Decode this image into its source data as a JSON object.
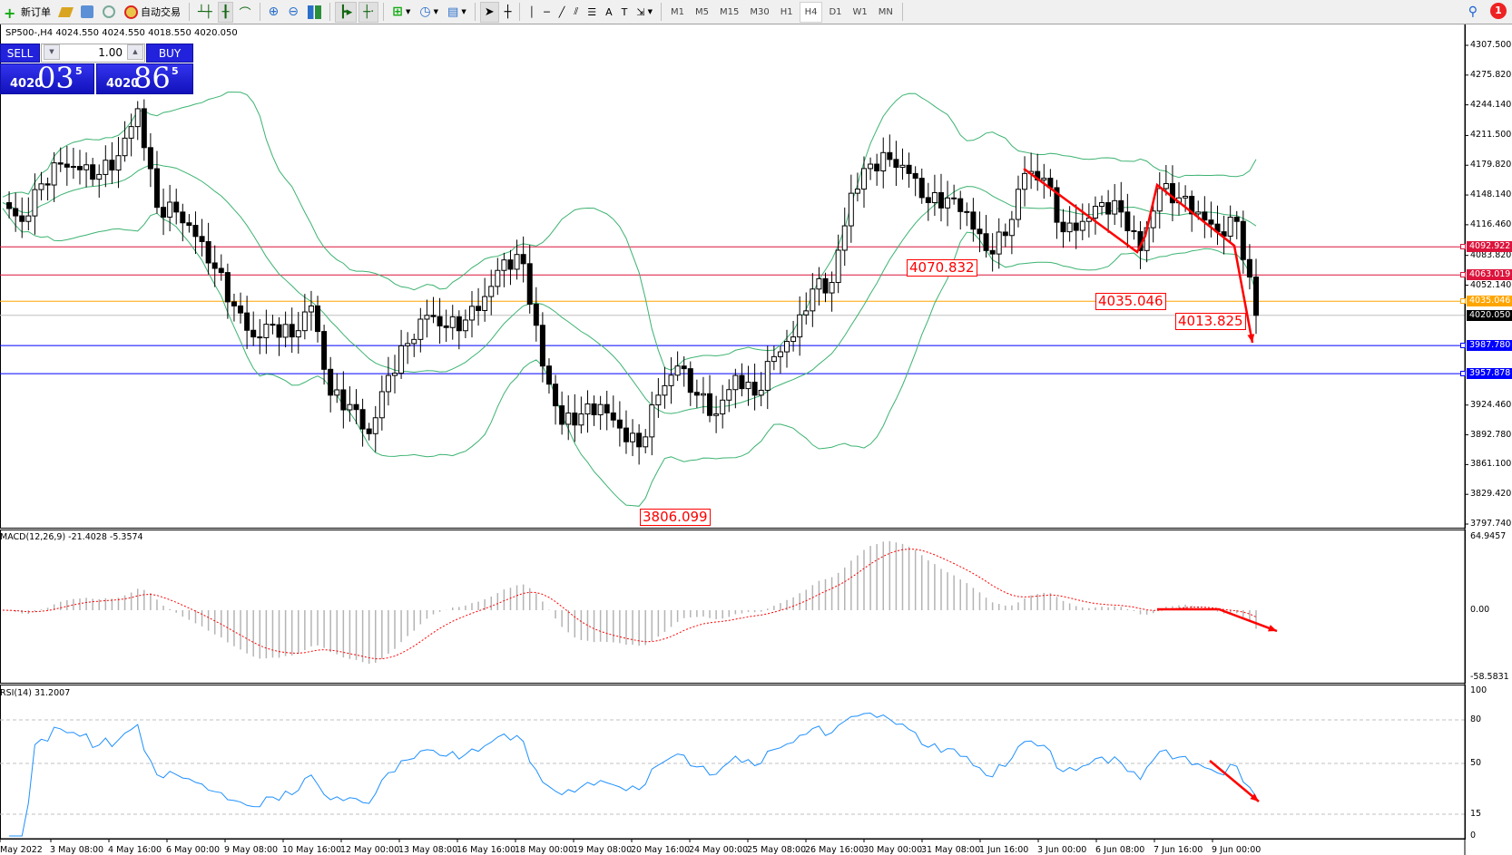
{
  "toolbar": {
    "new_order": "新订单",
    "auto_trading": "自动交易",
    "timeframes": [
      "M1",
      "M5",
      "M15",
      "M30",
      "H1",
      "H4",
      "D1",
      "W1",
      "MN"
    ],
    "active_timeframe": "H4",
    "notification_count": "1"
  },
  "symbol_info": "SP500-,H4  4024.550 4024.550 4018.550 4020.050",
  "one_click": {
    "sell_label": "SELL",
    "buy_label": "BUY",
    "lot": "1.00",
    "sell_price": {
      "big": "4020",
      "main": "03",
      "sup": "5"
    },
    "buy_price": {
      "big": "4020",
      "main": "86",
      "sup": "5"
    }
  },
  "colors": {
    "bollinger": "#3cb371",
    "rsi": "#1e90ff",
    "macd_signal": "#ff0000",
    "macd_hist": "#b4b4b4",
    "resistance": "#dc143c",
    "entry": "#ffa500",
    "support": "#0000ff",
    "annotation": "#ff0000"
  },
  "chart_data": [
    {
      "type": "candlestick",
      "symbol": "SP500-",
      "timeframe": "H4",
      "ylim": [
        3797.74,
        4307.5
      ],
      "y_ticks": [
        "4307.500",
        "4275.820",
        "4244.140",
        "4211.500",
        "4179.820",
        "4148.140",
        "4116.460",
        "4083.820",
        "4052.140",
        "3924.460",
        "3892.780",
        "3861.100",
        "3829.420",
        "3797.740"
      ],
      "x_ticks": [
        "May 2022",
        "3 May 08:00",
        "4 May 16:00",
        "6 May 00:00",
        "9 May 08:00",
        "10 May 16:00",
        "12 May 00:00",
        "13 May 08:00",
        "16 May 16:00",
        "18 May 00:00",
        "19 May 08:00",
        "20 May 16:00",
        "24 May 00:00",
        "25 May 08:00",
        "26 May 16:00",
        "30 May 00:00",
        "31 May 08:00",
        "1 Jun 16:00",
        "3 Jun 00:00",
        "6 Jun 08:00",
        "7 Jun 16:00",
        "9 Jun 00:00"
      ],
      "closes": [
        4140,
        4120,
        4160,
        4181,
        4175,
        4170,
        4190,
        4240,
        4135,
        4130,
        4104,
        4070,
        4030,
        3997,
        4010,
        3997,
        4030,
        3935,
        3925,
        3894,
        3956,
        3990,
        4020,
        4007,
        4015,
        4040,
        4079,
        4075,
        3966,
        3904,
        3915,
        3925,
        3900,
        3880,
        3935,
        3966,
        3935,
        3915,
        3956,
        3935,
        3976,
        3997,
        4048,
        4055,
        4150,
        4181,
        4186,
        4171,
        4140,
        4145,
        4130,
        4089,
        4105,
        4171,
        4166,
        4109,
        4120,
        4140,
        4130,
        4089,
        4155,
        4145,
        4130,
        4109,
        4120,
        4020
      ],
      "indicator": "Bollinger Bands",
      "price_levels": [
        {
          "value": "4092.922",
          "kind": "resistance"
        },
        {
          "value": "4063.019",
          "kind": "resistance"
        },
        {
          "value": "4035.046",
          "kind": "entry"
        },
        {
          "value": "4020.050",
          "kind": "bid"
        },
        {
          "value": "3987.780",
          "kind": "support"
        },
        {
          "value": "3957.878",
          "kind": "support"
        }
      ],
      "annotations": [
        "4070.832",
        "4035.046",
        "4013.825",
        "3806.099"
      ]
    },
    {
      "type": "bar",
      "title": "MACD(12,26,9) -21.4028 -5.3574",
      "y_ticks": [
        "64.9457",
        "0.00",
        "-58.5831"
      ],
      "ylim": [
        -58.5831,
        64.9457
      ]
    },
    {
      "type": "line",
      "title": "RSI(14) 31.2007",
      "y_ticks": [
        "100",
        "80",
        "50",
        "15",
        "0"
      ],
      "levels": [
        80,
        50,
        15
      ],
      "ylim": [
        0,
        100
      ]
    }
  ]
}
